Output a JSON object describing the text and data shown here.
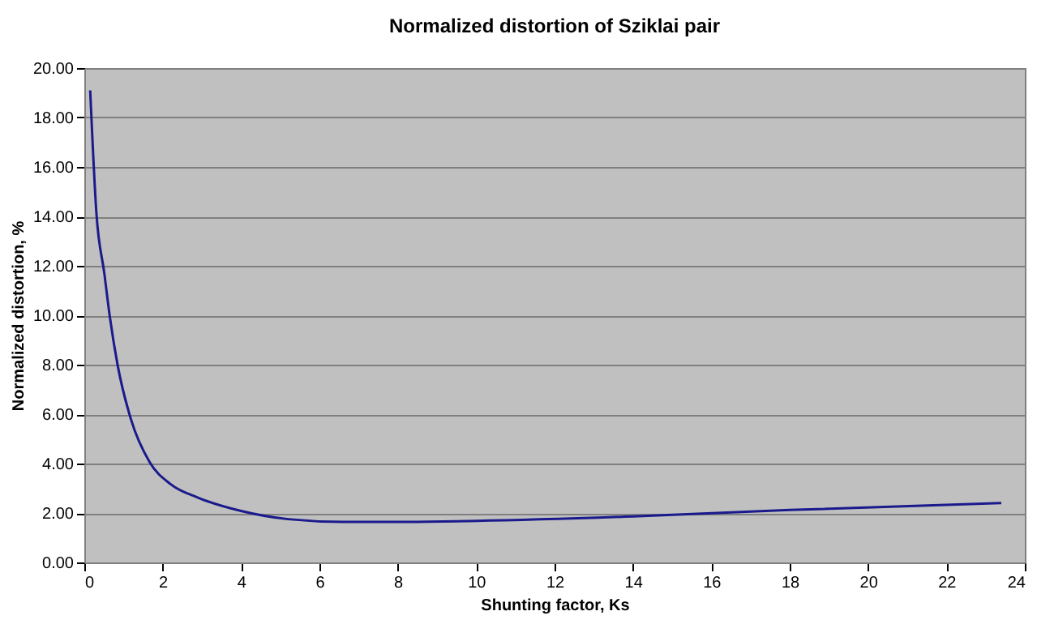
{
  "chart_data": {
    "type": "line",
    "title": "Normalized distortion of Sziklai pair",
    "xlabel": "Shunting factor, Ks",
    "ylabel": "Normalized distortion, %",
    "x": [
      0.15,
      0.31,
      0.51,
      0.65,
      0.85,
      1.19,
      1.67,
      2.2,
      2.9,
      4.0,
      5.2,
      6.6,
      8.1,
      10,
      14,
      18,
      23.4
    ],
    "series": [
      {
        "color": "#1a1a8c",
        "values": [
          19.1,
          14.1,
          11.7,
          9.95,
          7.98,
          5.79,
          4.05,
          3.17,
          2.62,
          2.08,
          1.75,
          1.64,
          1.64,
          1.68,
          1.86,
          2.12,
          2.4
        ]
      }
    ],
    "xlim": [
      0,
      24
    ],
    "xticks": [
      0,
      2,
      4,
      6,
      8,
      10,
      12,
      14,
      16,
      18,
      20,
      22,
      24
    ],
    "ylim": [
      0,
      20
    ],
    "yticks": [
      {
        "value": 0,
        "label": "0.00"
      },
      {
        "value": 2,
        "label": "2.00"
      },
      {
        "value": 4,
        "label": "4.00"
      },
      {
        "value": 6,
        "label": "6.00"
      },
      {
        "value": 8,
        "label": "8.00"
      },
      {
        "value": 10,
        "label": "10.00"
      },
      {
        "value": 12,
        "label": "12.00"
      },
      {
        "value": 14,
        "label": "14.00"
      },
      {
        "value": 16,
        "label": "16.00"
      },
      {
        "value": 18,
        "label": "18.00"
      },
      {
        "value": 20,
        "label": "20.00"
      }
    ],
    "grid": "y",
    "marker": "none",
    "line_style": "solid"
  }
}
